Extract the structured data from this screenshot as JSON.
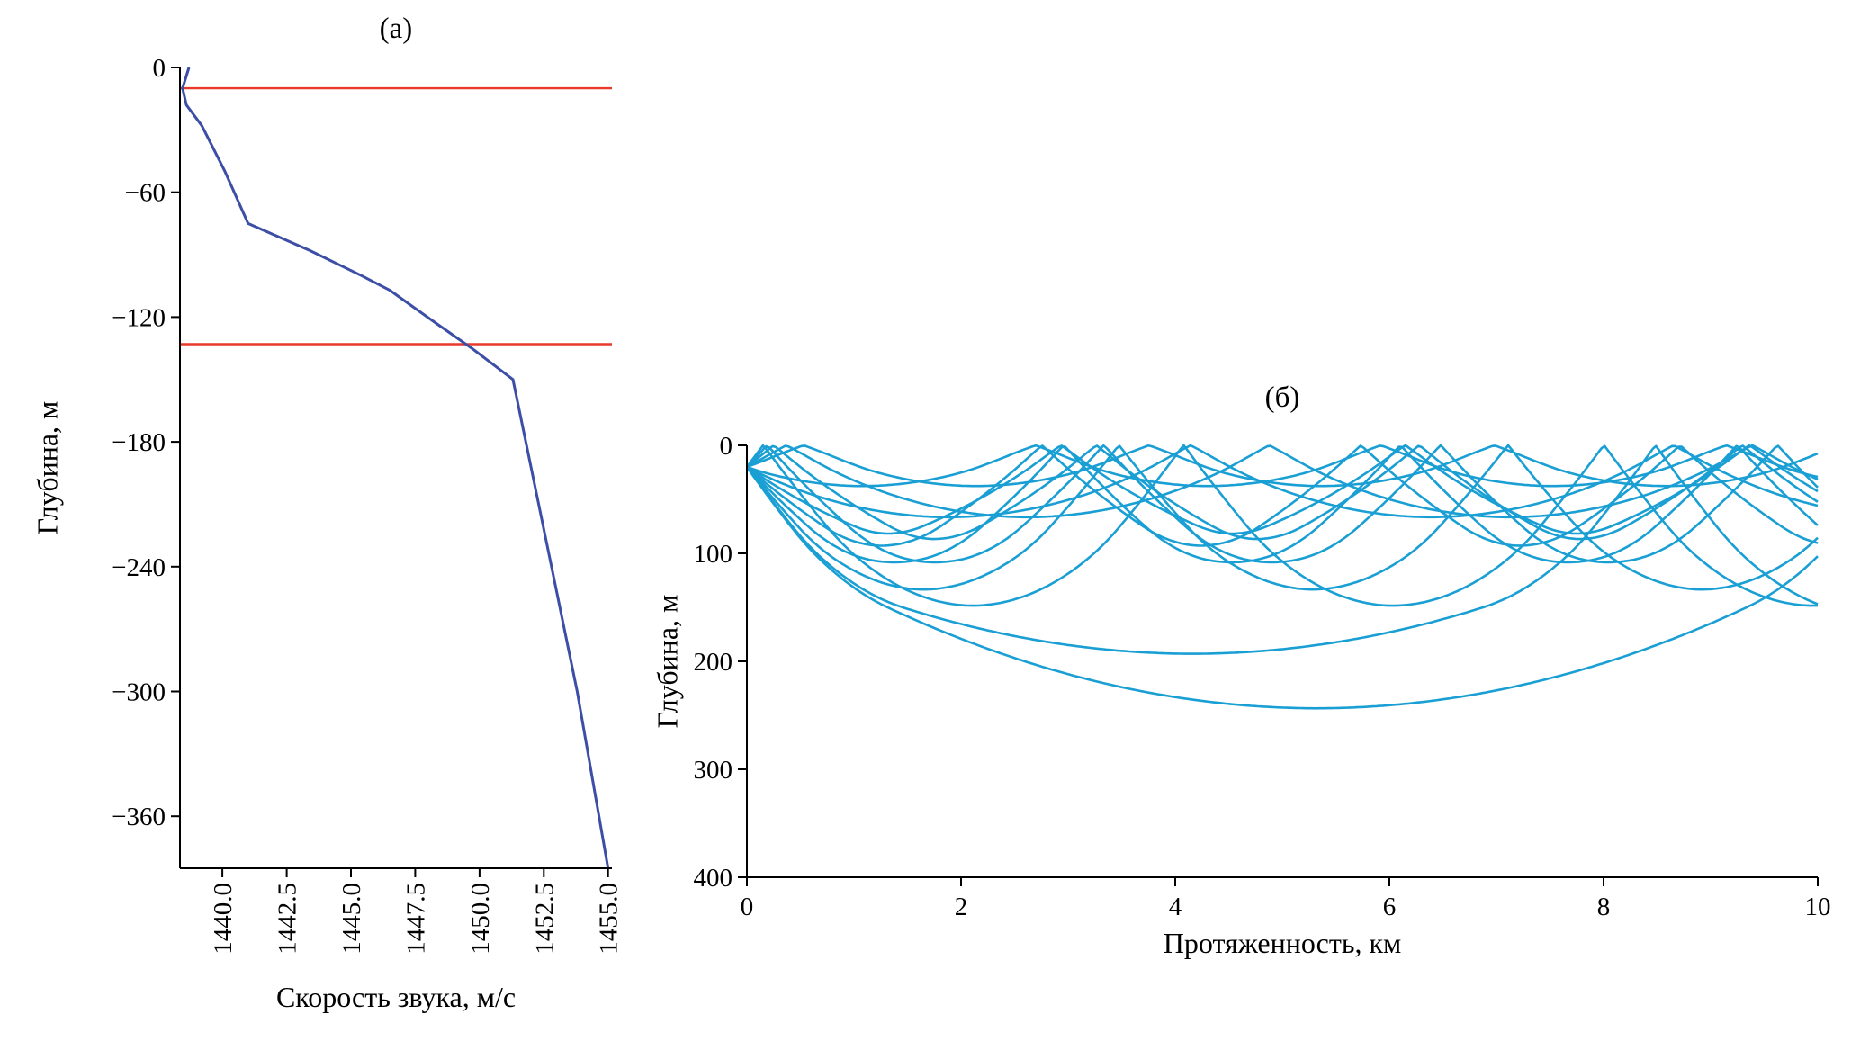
{
  "figure": {
    "panel_a": {
      "title": "(а)",
      "xlabel": "Скорость звука, м/с",
      "ylabel": "Глубина, м"
    },
    "panel_b": {
      "title": "(б)",
      "xlabel": "Протяженность, км",
      "ylabel": "Глубина, м"
    }
  },
  "chart_data": [
    {
      "type": "line",
      "title": "(а)",
      "xlabel": "Скорость звука, м/с",
      "ylabel": "Глубина, м",
      "xlim": [
        1438.35,
        1455.15
      ],
      "ylim": [
        -385,
        0
      ],
      "grid": false,
      "xticks": {
        "values": [
          1440.0,
          1442.5,
          1445.0,
          1447.5,
          1450.0,
          1452.5,
          1455.0
        ],
        "labels": [
          "1440.0",
          "1442.5",
          "1445.0",
          "1447.5",
          "1450.0",
          "1452.5",
          "1455.0"
        ],
        "rotation": 90
      },
      "yticks": {
        "values": [
          0,
          -60,
          -120,
          -180,
          -240,
          -300,
          -360
        ],
        "labels": [
          "0",
          "−60",
          "−120",
          "−180",
          "−240",
          "−300",
          "−360"
        ]
      },
      "series": [
        {
          "name": "sound_speed_profile",
          "color": "#3c4ea5",
          "x": [
            1438.7,
            1438.45,
            1438.6,
            1439.2,
            1440.1,
            1441.0,
            1443.4,
            1445.4,
            1446.5,
            1448.2,
            1449.7,
            1451.3,
            1452.3,
            1453.8,
            1455.0
          ],
          "y": [
            0,
            -10,
            -18,
            -28,
            -50,
            -75,
            -88,
            -100,
            -107,
            -122,
            -135,
            -150,
            -210,
            -300,
            -385
          ]
        }
      ],
      "reference_lines": [
        {
          "name": "upper-red-line",
          "y": -10,
          "color": "#e8392b"
        },
        {
          "name": "lower-red-line",
          "y": -133,
          "color": "#e8392b"
        }
      ]
    },
    {
      "type": "line",
      "title": "(б)",
      "xlabel": "Протяженность, км",
      "ylabel": "Глубина, м",
      "xlim": [
        0,
        10
      ],
      "ylim": [
        400,
        0
      ],
      "grid": false,
      "xticks": {
        "values": [
          0,
          2,
          4,
          6,
          8,
          10
        ],
        "labels": [
          "0",
          "2",
          "4",
          "6",
          "8",
          "10"
        ]
      },
      "yticks": {
        "values": [
          0,
          100,
          200,
          300,
          400
        ],
        "labels": [
          "0",
          "100",
          "200",
          "300",
          "400"
        ]
      },
      "ray_color": "#1a9fd4",
      "source_depth_m": 20,
      "launch_angles_deg": [
        -7.5,
        -6,
        -4.5,
        -3,
        -2,
        2,
        3,
        4,
        5,
        6,
        7,
        7.76,
        8.0
      ],
      "profile": {
        "depth_m": [
          0,
          10,
          18,
          28,
          50,
          75,
          88,
          100,
          107,
          122,
          135,
          150,
          210,
          300,
          385,
          400
        ],
        "speed_mps": [
          1438.7,
          1438.45,
          1438.6,
          1439.2,
          1440.1,
          1441.0,
          1443.4,
          1445.4,
          1446.5,
          1448.2,
          1449.7,
          1451.3,
          1452.3,
          1453.8,
          1455.0,
          1455.2
        ]
      }
    }
  ],
  "colors": {
    "spine": "#000000",
    "background": "#ffffff"
  }
}
